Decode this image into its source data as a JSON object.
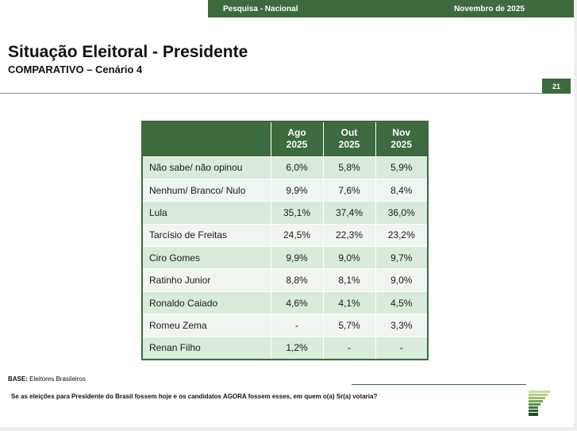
{
  "header": {
    "survey_label": "Pesquisa - Nacional",
    "date_label": "Novembro de 2025",
    "title": "Situação Eleitoral - Presidente",
    "subtitle": "COMPARATIVO – Cenário 4",
    "page_number": "21"
  },
  "table": {
    "columns": [
      {
        "line1": "Ago",
        "line2": "2025"
      },
      {
        "line1": "Out",
        "line2": "2025"
      },
      {
        "line1": "Nov",
        "line2": "2025"
      }
    ],
    "rows": [
      {
        "label": "Não sabe/ não opinou",
        "values": [
          "6,0%",
          "5,8%",
          "5,9%"
        ]
      },
      {
        "label": "Nenhum/ Branco/ Nulo",
        "values": [
          "9,9%",
          "7,6%",
          "8,4%"
        ]
      },
      {
        "label": "Lula",
        "values": [
          "35,1%",
          "37,4%",
          "36,0%"
        ]
      },
      {
        "label": "Tarcísio de Freitas",
        "values": [
          "24,5%",
          "22,3%",
          "23,2%"
        ]
      },
      {
        "label": "Ciro Gomes",
        "values": [
          "9,9%",
          "9,0%",
          "9,7%"
        ]
      },
      {
        "label": "Ratinho Junior",
        "values": [
          "8,8%",
          "8,1%",
          "9,0%"
        ]
      },
      {
        "label": "Ronaldo Caiado",
        "values": [
          "4,6%",
          "4,1%",
          "4,5%"
        ]
      },
      {
        "label": "Romeu Zema",
        "values": [
          "-",
          "5,7%",
          "3,3%"
        ]
      },
      {
        "label": "Renan Filho",
        "values": [
          "1,2%",
          "-",
          "-"
        ]
      }
    ]
  },
  "footer": {
    "base_label": "BASE:",
    "base_text": "Eleitores Brasileiros",
    "question": "Se as eleições para Presidente do Brasil fossem hoje e os candidatos AGORA fossem esses, em quem o(a) Sr(a) votaria?"
  },
  "colors": {
    "brand_green": "#3b6b3e",
    "row_odd": "#d9ebdb",
    "row_even": "#eef6ef"
  }
}
